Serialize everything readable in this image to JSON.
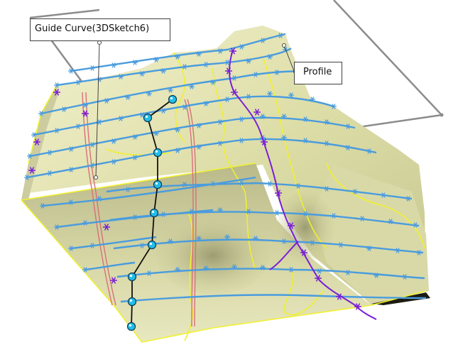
{
  "callouts": {
    "guide_curve": "Guide Curve(3DSketch6)",
    "profile": "Profile"
  },
  "colors": {
    "background": "#ffffff",
    "surface": "#e3e3b3",
    "surface_shadow": "#a6a67a",
    "guide_curve": "#111111",
    "guide_points": "#22bde8",
    "profiles": "#4a9cde",
    "profile_highlight": "#7a1fd6",
    "edge_curves": "#f0f030",
    "pink_curves": "#d8707a",
    "sketch_plane": "#8c8c8c"
  },
  "icons": [
    "guide-point-handle",
    "profile-star-marker"
  ]
}
